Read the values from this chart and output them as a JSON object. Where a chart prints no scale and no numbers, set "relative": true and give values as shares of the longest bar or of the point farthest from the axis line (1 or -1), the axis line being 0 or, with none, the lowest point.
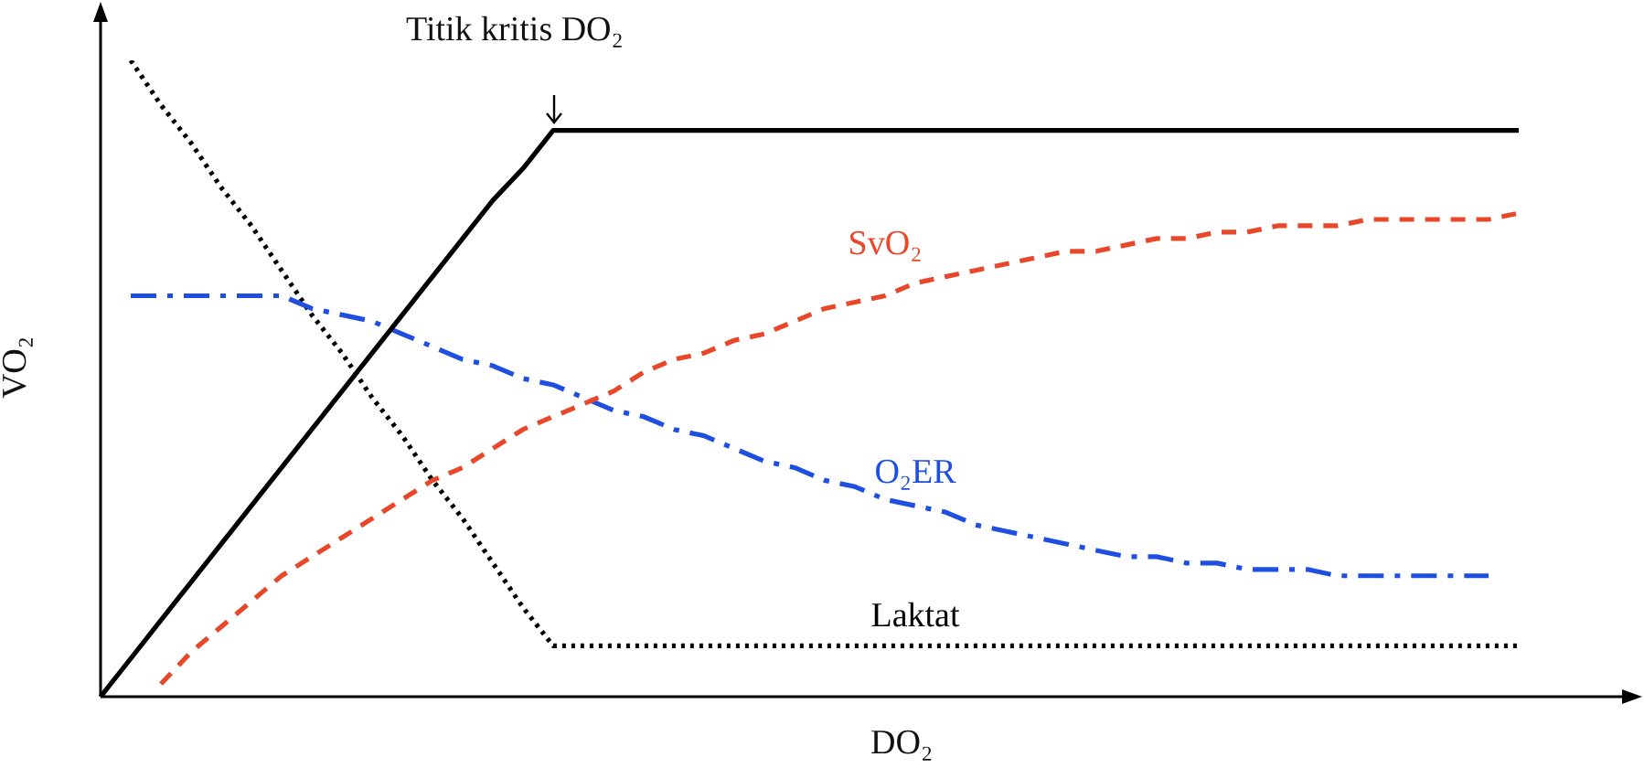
{
  "chart_data": {
    "type": "line",
    "relative": true,
    "xlabel": "DO₂",
    "ylabel": "VO₂",
    "legend": false,
    "marker": "none",
    "categories": [
      null,
      null,
      null,
      null,
      null,
      null,
      null,
      null,
      null,
      null,
      null,
      null,
      null,
      null,
      null,
      null,
      null,
      null,
      null,
      null,
      null,
      null,
      null,
      null,
      null,
      null,
      null,
      null,
      null,
      null,
      null,
      null,
      null,
      null,
      null,
      null,
      null,
      null,
      null,
      null,
      null,
      null,
      null,
      null,
      null,
      null,
      null,
      null,
      null,
      null,
      null,
      null
    ],
    "annotations": [
      "Titik kritis DO₂"
    ],
    "series": [
      {
        "color": "#000000",
        "line_style": "solid",
        "values": [
          0,
          0.06,
          0.12,
          0.18,
          0.24,
          0.3,
          0.36,
          0.42,
          0.48,
          0.54,
          0.6,
          0.66,
          0.72,
          0.78,
          0.83,
          0.89,
          0.89,
          0.89,
          0.89,
          0.89,
          0.89,
          0.89,
          0.89,
          0.89,
          0.89,
          0.89,
          0.89,
          0.89,
          0.89,
          0.89,
          0.89,
          0.89,
          0.89,
          0.89,
          0.89,
          0.89,
          0.89,
          0.89,
          0.89,
          0.89,
          0.89,
          0.89,
          0.89,
          0.89,
          0.89,
          0.89,
          0.89,
          0.89,
          null,
          null,
          null,
          null
        ]
      },
      {
        "name": "SvO₂",
        "color": "#e8472a",
        "line_style": "dashed",
        "values": [
          null,
          null,
          0.02,
          0.07,
          0.11,
          0.15,
          0.19,
          0.22,
          0.25,
          0.28,
          0.31,
          0.34,
          0.36,
          0.39,
          0.42,
          0.44,
          0.46,
          0.48,
          0.51,
          0.53,
          0.54,
          0.56,
          0.57,
          0.59,
          0.61,
          0.62,
          0.63,
          0.65,
          0.66,
          0.67,
          0.68,
          0.69,
          0.7,
          0.7,
          0.71,
          0.72,
          0.72,
          0.73,
          0.73,
          0.74,
          0.74,
          0.74,
          0.75,
          0.75,
          0.75,
          0.75,
          0.75,
          0.76,
          null,
          null,
          null,
          null
        ]
      },
      {
        "name": "O₂ER",
        "color": "#1f4fe0",
        "line_style": "dashdot",
        "values": [
          null,
          0.63,
          0.63,
          0.63,
          0.63,
          0.63,
          0.63,
          0.61,
          0.6,
          0.59,
          0.57,
          0.55,
          0.53,
          0.52,
          0.5,
          0.49,
          0.47,
          0.45,
          0.44,
          0.42,
          0.41,
          0.39,
          0.37,
          0.36,
          0.34,
          0.33,
          0.31,
          0.3,
          0.29,
          0.27,
          0.26,
          0.25,
          0.24,
          0.23,
          0.22,
          0.22,
          0.21,
          0.21,
          0.2,
          0.2,
          0.2,
          0.19,
          0.19,
          0.19,
          0.19,
          0.19,
          0.19,
          null,
          null,
          null,
          null,
          null
        ]
      },
      {
        "name": "Laktat",
        "color": "#000000",
        "line_style": "dotted",
        "values": [
          null,
          1.0,
          0.93,
          0.87,
          0.8,
          0.74,
          0.67,
          0.6,
          0.54,
          0.47,
          0.41,
          0.34,
          0.28,
          0.21,
          0.14,
          0.08,
          0.08,
          0.08,
          0.08,
          0.08,
          0.08,
          0.08,
          0.08,
          0.08,
          0.08,
          0.08,
          0.08,
          0.08,
          0.08,
          0.08,
          0.08,
          0.08,
          0.08,
          0.08,
          0.08,
          0.08,
          0.08,
          0.08,
          0.08,
          0.08,
          0.08,
          0.08,
          0.08,
          0.08,
          0.08,
          0.08,
          0.08,
          0.08,
          null,
          null,
          null,
          null
        ]
      }
    ]
  }
}
